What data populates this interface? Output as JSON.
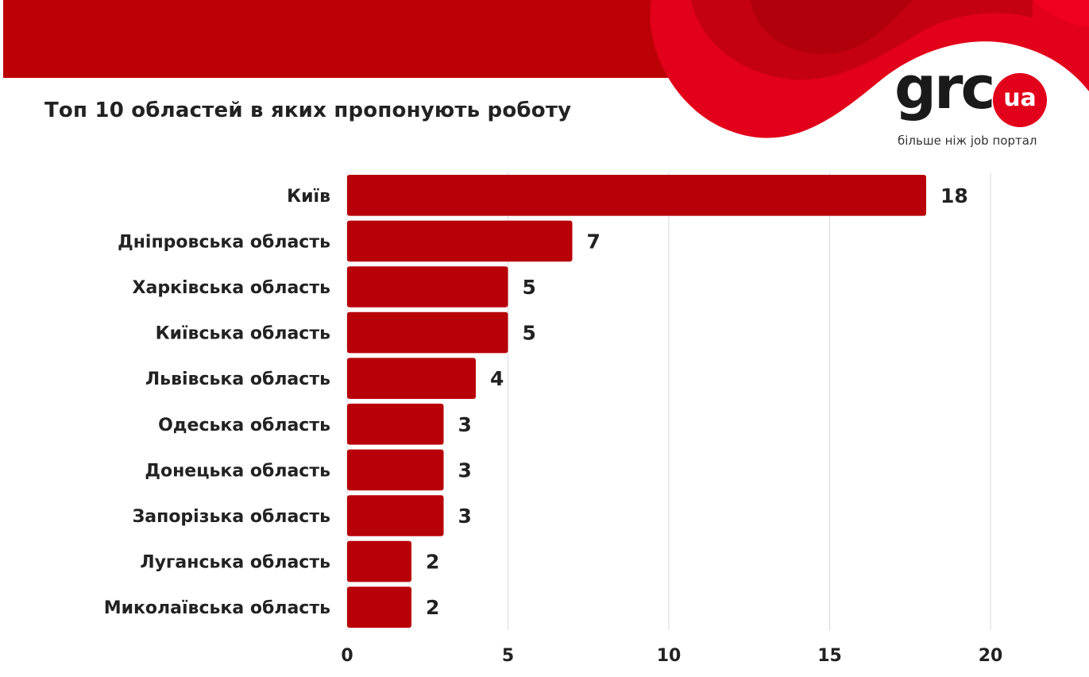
{
  "title": "Топ 10 областей в яких пропонують роботу",
  "logo": {
    "word": "grc",
    "badge": "ua",
    "tagline": "більше ніж job портал"
  },
  "colors": {
    "bar": "#b80008",
    "brand_red": "#e2001a",
    "grid": "#d9d9d9"
  },
  "chart_data": {
    "type": "bar",
    "orientation": "horizontal",
    "categories": [
      "Київ",
      "Дніпровська область",
      "Харківська область",
      "Київська область",
      "Львівська область",
      "Одеська область",
      "Донецька область",
      "Запорізька область",
      "Луганська область",
      "Миколаївська область"
    ],
    "values": [
      18,
      7,
      5,
      5,
      4,
      3,
      3,
      3,
      2,
      2
    ],
    "xlim": [
      0,
      20
    ],
    "xticks": [
      0,
      5,
      10,
      15,
      20
    ],
    "grid": "vertical",
    "data_labels": true
  }
}
